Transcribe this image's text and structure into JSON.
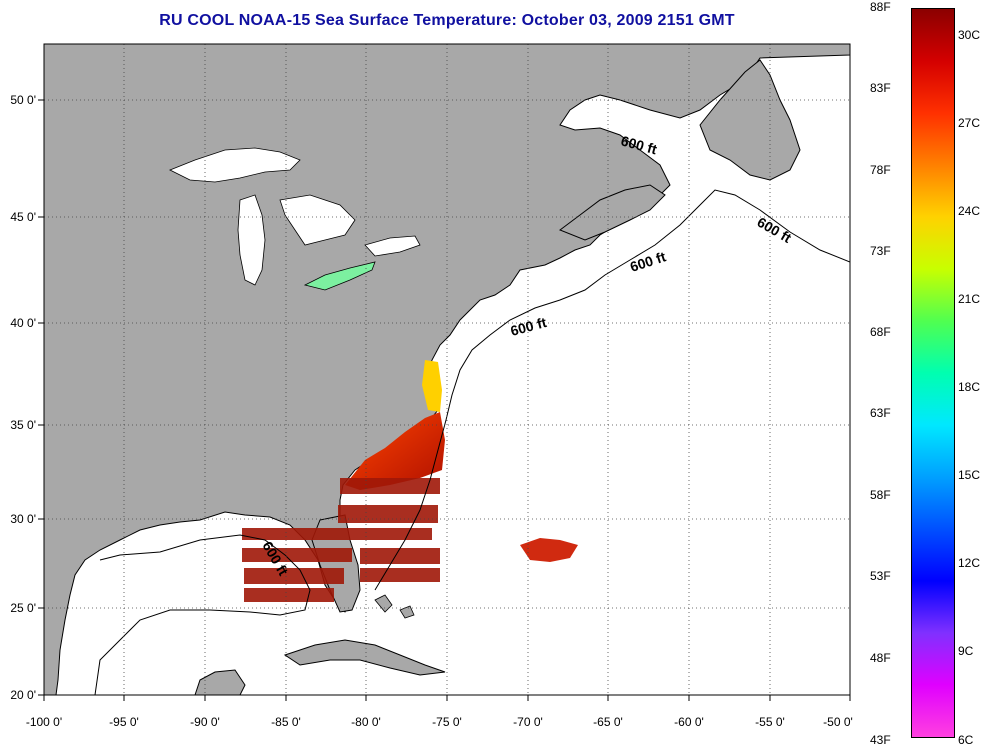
{
  "title": "RU COOL  NOAA-15  Sea Surface Temperature:  October 03, 2009 2151 GMT",
  "map": {
    "lon_ticks": [
      "-100 0'",
      "-95 0'",
      "-90 0'",
      "-85 0'",
      "-80 0'",
      "-75 0'",
      "-70 0'",
      "-65 0'",
      "-60 0'",
      "-55 0'",
      "-50 0'"
    ],
    "lat_ticks": [
      "50 0'",
      "45 0'",
      "40 0'",
      "35 0'",
      "30 0'",
      "25 0'",
      "20 0'"
    ],
    "isobath_labels": [
      "600 ft",
      "600 ft",
      "600 ft",
      "600 ft",
      "600 ft"
    ],
    "colors": {
      "land": "#a8a8a8",
      "ocean": "#ffffff",
      "title": "#1010a0"
    }
  },
  "colorbar": {
    "fahrenheit_labels": [
      "88F",
      "83F",
      "78F",
      "73F",
      "68F",
      "63F",
      "58F",
      "53F",
      "48F",
      "43F"
    ],
    "celsius_labels": [
      "30C",
      "27C",
      "24C",
      "21C",
      "18C",
      "15C",
      "12C",
      "9C",
      "6C"
    ],
    "gradient_colors": [
      "#8b0000",
      "#d40000",
      "#ff3000",
      "#ff8000",
      "#ffd200",
      "#c8ff00",
      "#50ff50",
      "#00ffb0",
      "#00e8ff",
      "#00a0ff",
      "#0050ff",
      "#0000ff",
      "#8030ff",
      "#e000ff",
      "#ff40e0"
    ]
  }
}
